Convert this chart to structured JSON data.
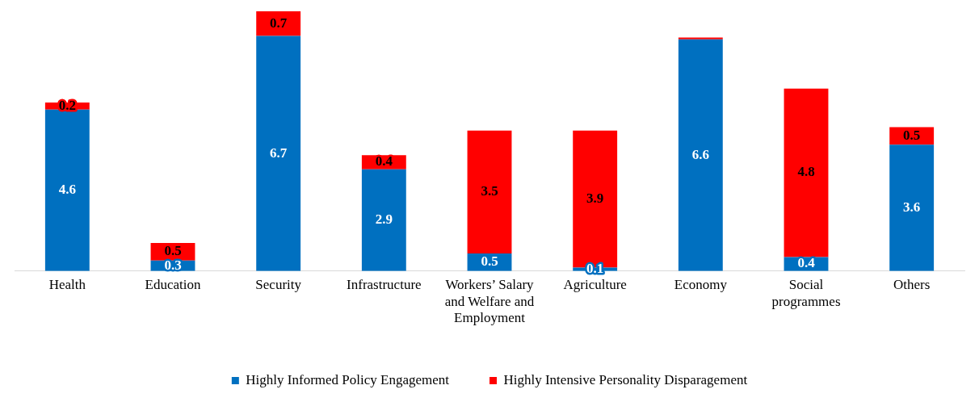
{
  "chart_data": {
    "type": "bar",
    "stacked": true,
    "legend": "bottom",
    "categories": [
      "Health",
      "Education",
      "Security",
      "Infrastructure",
      "Workers’ Salary and Welfare and Employment",
      "Agriculture",
      "Economy",
      "Social programmes",
      "Others"
    ],
    "series": [
      {
        "name": "Highly Informed Policy Engagement",
        "color": "#0070c0",
        "values": [
          4.6,
          0.3,
          6.7,
          2.9,
          0.5,
          0.1,
          6.6,
          0.4,
          3.6
        ],
        "value_labels": [
          "4.6",
          "0.3",
          "6.7",
          "2.9",
          "0.5",
          "0.1",
          "6.6",
          "0.4",
          "3.6"
        ]
      },
      {
        "name": "Highly Intensive Personality Disparagement",
        "color": "#ff0000",
        "values": [
          0.2,
          0.5,
          0.7,
          0.4,
          3.5,
          3.9,
          0.05,
          4.8,
          0.5
        ],
        "value_labels": [
          "0.2",
          "0.5",
          "0.7",
          "0.4",
          "3.5",
          "3.9",
          null,
          "4.8",
          "0.5"
        ]
      }
    ]
  }
}
